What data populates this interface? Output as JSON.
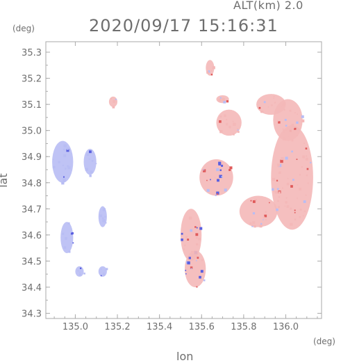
{
  "header": {
    "altitude_label": "ALT(km) 2.0",
    "timestamp": "2020/09/17 15:16:31"
  },
  "chart_data": {
    "type": "heatmap",
    "xlabel": "lon",
    "ylabel": "lat",
    "xunit": "(deg)",
    "yunit": "(deg)",
    "xlim": [
      134.86,
      136.17
    ],
    "ylim": [
      34.28,
      35.34
    ],
    "xticks": [
      135.0,
      135.2,
      135.4,
      135.6,
      135.8,
      136.0
    ],
    "xtick_labels": [
      "135.0",
      "135.2",
      "135.4",
      "135.6",
      "135.8",
      "136.0"
    ],
    "yticks": [
      34.3,
      34.4,
      34.5,
      34.6,
      34.7,
      34.8,
      34.9,
      35.0,
      35.1,
      35.2,
      35.3
    ],
    "ytick_labels": [
      "34.3",
      "34.4",
      "34.5",
      "34.6",
      "34.7",
      "34.8",
      "34.9",
      "35.0",
      "35.1",
      "35.2",
      "35.3"
    ],
    "grid": false,
    "colors": {
      "positive": "#f4b8b8",
      "negative": "#b8bdf4",
      "strong_positive": "#e05a5a",
      "strong_negative": "#5a60e0",
      "axis": "#aaaaaa"
    },
    "echo_regions": [
      {
        "lon": 136.03,
        "lat": 34.82,
        "rlon": 0.1,
        "rlat": 0.2,
        "sign": "positive"
      },
      {
        "lon": 136.01,
        "lat": 35.04,
        "rlon": 0.07,
        "rlat": 0.08,
        "sign": "positive"
      },
      {
        "lon": 135.93,
        "lat": 35.1,
        "rlon": 0.07,
        "rlat": 0.04,
        "sign": "positive"
      },
      {
        "lon": 135.87,
        "lat": 34.69,
        "rlon": 0.09,
        "rlat": 0.06,
        "sign": "positive"
      },
      {
        "lon": 135.73,
        "lat": 35.03,
        "rlon": 0.06,
        "rlat": 0.05,
        "sign": "positive"
      },
      {
        "lon": 135.64,
        "lat": 35.24,
        "rlon": 0.02,
        "rlat": 0.03,
        "sign": "positive"
      },
      {
        "lon": 135.7,
        "lat": 35.12,
        "rlon": 0.03,
        "rlat": 0.015,
        "sign": "positive"
      },
      {
        "lon": 135.18,
        "lat": 35.11,
        "rlon": 0.02,
        "rlat": 0.02,
        "sign": "positive"
      },
      {
        "lon": 135.55,
        "lat": 34.6,
        "rlon": 0.05,
        "rlat": 0.1,
        "sign": "mixed"
      },
      {
        "lon": 135.57,
        "lat": 34.47,
        "rlon": 0.05,
        "rlat": 0.07,
        "sign": "mixed"
      },
      {
        "lon": 135.67,
        "lat": 34.82,
        "rlon": 0.08,
        "rlat": 0.07,
        "sign": "mixed"
      },
      {
        "lon": 134.94,
        "lat": 34.88,
        "rlon": 0.05,
        "rlat": 0.08,
        "sign": "negative"
      },
      {
        "lon": 134.96,
        "lat": 34.59,
        "rlon": 0.03,
        "rlat": 0.06,
        "sign": "negative"
      },
      {
        "lon": 135.07,
        "lat": 34.88,
        "rlon": 0.03,
        "rlat": 0.05,
        "sign": "negative"
      },
      {
        "lon": 135.13,
        "lat": 34.67,
        "rlon": 0.02,
        "rlat": 0.04,
        "sign": "negative"
      },
      {
        "lon": 135.02,
        "lat": 34.46,
        "rlon": 0.02,
        "rlat": 0.02,
        "sign": "negative"
      },
      {
        "lon": 135.13,
        "lat": 34.46,
        "rlon": 0.02,
        "rlat": 0.02,
        "sign": "negative"
      }
    ]
  }
}
